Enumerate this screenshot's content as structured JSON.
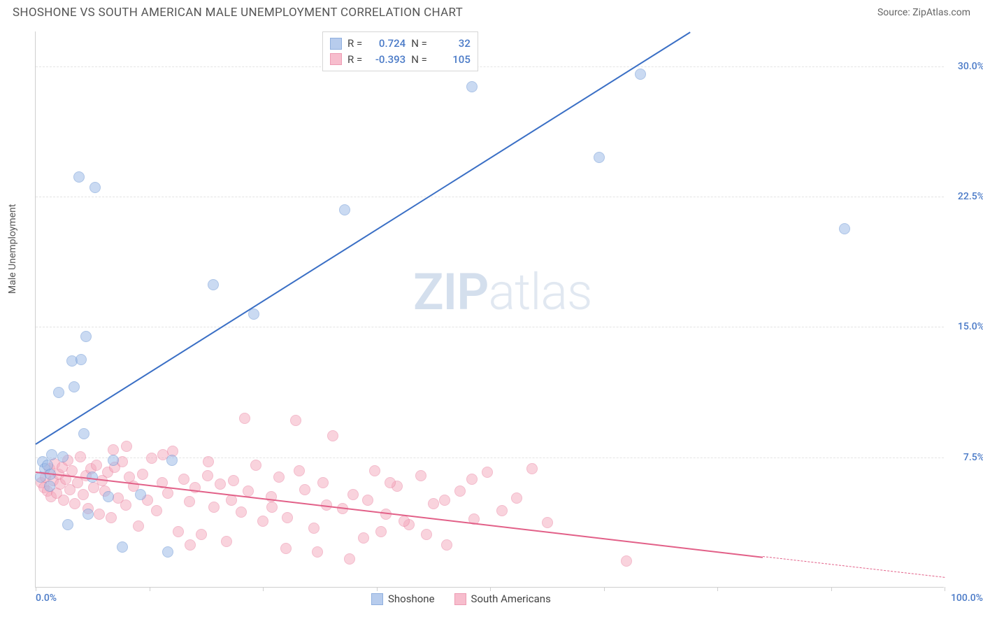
{
  "header": {
    "title": "SHOSHONE VS SOUTH AMERICAN MALE UNEMPLOYMENT CORRELATION CHART",
    "source_prefix": "Source: ",
    "source_name": "ZipAtlas.com"
  },
  "watermark": {
    "bold": "ZIP",
    "light": "atlas"
  },
  "chart": {
    "type": "scatter",
    "ylabel": "Male Unemployment",
    "background_color": "#ffffff",
    "grid_color": "#e4e4e4",
    "axis_color": "#cfcfcf",
    "marker_radius": 8,
    "marker_stroke_width": 1,
    "xlim": [
      0,
      100
    ],
    "ylim": [
      0,
      32
    ],
    "xticks": [
      0,
      12.5,
      25,
      37.5,
      50,
      62.5,
      75,
      87.5,
      100
    ],
    "yticks": [
      7.5,
      15.0,
      22.5,
      30.0
    ],
    "ytick_labels": [
      "7.5%",
      "15.0%",
      "22.5%",
      "30.0%"
    ],
    "xaxis_labels": [
      {
        "pos": 0,
        "text": "0.0%",
        "align": "left"
      },
      {
        "pos": 100,
        "text": "100.0%",
        "align": "right"
      }
    ],
    "tick_label_color": "#4a7ac7",
    "series": {
      "shoshone": {
        "label": "Shoshone",
        "fill": "#9fbce8",
        "fill_alpha": 0.55,
        "stroke": "#6a95d4",
        "line_color": "#3a6fc5",
        "r_value": "0.724",
        "n_value": "32",
        "trend": {
          "x1": 0,
          "y1": 8.3,
          "x2": 72,
          "y2": 32
        },
        "points": [
          [
            0.5,
            6.3
          ],
          [
            0.8,
            7.2
          ],
          [
            1.0,
            6.8
          ],
          [
            1.3,
            7.0
          ],
          [
            1.5,
            5.8
          ],
          [
            1.6,
            6.5
          ],
          [
            1.8,
            7.6
          ],
          [
            2.5,
            11.2
          ],
          [
            3.0,
            7.5
          ],
          [
            3.5,
            3.6
          ],
          [
            4.0,
            13.0
          ],
          [
            4.2,
            11.5
          ],
          [
            4.8,
            23.6
          ],
          [
            5.0,
            13.1
          ],
          [
            5.3,
            8.8
          ],
          [
            5.5,
            14.4
          ],
          [
            5.8,
            4.2
          ],
          [
            6.2,
            6.3
          ],
          [
            6.5,
            23.0
          ],
          [
            8.0,
            5.2
          ],
          [
            8.5,
            7.3
          ],
          [
            9.5,
            2.3
          ],
          [
            11.5,
            5.3
          ],
          [
            14.5,
            2.0
          ],
          [
            15.0,
            7.3
          ],
          [
            19.5,
            17.4
          ],
          [
            24.0,
            15.7
          ],
          [
            34.0,
            21.7
          ],
          [
            48.0,
            28.8
          ],
          [
            62.0,
            24.7
          ],
          [
            66.5,
            29.5
          ],
          [
            89.0,
            20.6
          ]
        ]
      },
      "south_american": {
        "label": "South Americans",
        "fill": "#f5a8bd",
        "fill_alpha": 0.5,
        "stroke": "#e87a9a",
        "line_color": "#e26088",
        "r_value": "-0.393",
        "n_value": "105",
        "trend_solid": {
          "x1": 0,
          "y1": 6.7,
          "x2": 80,
          "y2": 1.8
        },
        "trend_dashed": {
          "x1": 80,
          "y1": 1.8,
          "x2": 100,
          "y2": 0.6
        },
        "points": [
          [
            0.6,
            6.0
          ],
          [
            0.9,
            5.7
          ],
          [
            1.1,
            6.3
          ],
          [
            1.3,
            5.5
          ],
          [
            1.5,
            6.8
          ],
          [
            1.7,
            5.2
          ],
          [
            1.9,
            6.1
          ],
          [
            2.1,
            7.1
          ],
          [
            2.3,
            5.4
          ],
          [
            2.5,
            6.5
          ],
          [
            2.7,
            5.9
          ],
          [
            2.9,
            6.9
          ],
          [
            3.1,
            5.0
          ],
          [
            3.3,
            6.2
          ],
          [
            3.5,
            7.3
          ],
          [
            3.8,
            5.6
          ],
          [
            4.0,
            6.7
          ],
          [
            4.3,
            4.8
          ],
          [
            4.6,
            6.0
          ],
          [
            4.9,
            7.5
          ],
          [
            5.2,
            5.3
          ],
          [
            5.5,
            6.4
          ],
          [
            5.8,
            4.5
          ],
          [
            6.1,
            6.8
          ],
          [
            6.4,
            5.7
          ],
          [
            6.7,
            7.0
          ],
          [
            7.0,
            4.2
          ],
          [
            7.3,
            6.1
          ],
          [
            7.6,
            5.5
          ],
          [
            7.9,
            6.6
          ],
          [
            8.3,
            4.0
          ],
          [
            8.7,
            6.9
          ],
          [
            9.1,
            5.1
          ],
          [
            9.5,
            7.2
          ],
          [
            9.9,
            4.7
          ],
          [
            10.3,
            6.3
          ],
          [
            10.8,
            5.8
          ],
          [
            11.3,
            3.5
          ],
          [
            11.8,
            6.5
          ],
          [
            12.3,
            5.0
          ],
          [
            12.8,
            7.4
          ],
          [
            13.3,
            4.4
          ],
          [
            13.9,
            6.0
          ],
          [
            14.5,
            5.4
          ],
          [
            15.1,
            7.8
          ],
          [
            15.7,
            3.2
          ],
          [
            16.3,
            6.2
          ],
          [
            16.9,
            4.9
          ],
          [
            17.5,
            5.7
          ],
          [
            18.2,
            3.0
          ],
          [
            18.9,
            6.4
          ],
          [
            19.6,
            4.6
          ],
          [
            20.3,
            5.9
          ],
          [
            21.0,
            2.6
          ],
          [
            21.8,
            6.1
          ],
          [
            22.6,
            4.3
          ],
          [
            23.4,
            5.5
          ],
          [
            24.2,
            7.0
          ],
          [
            25.0,
            3.8
          ],
          [
            25.9,
            5.2
          ],
          [
            26.8,
            6.3
          ],
          [
            27.7,
            4.0
          ],
          [
            28.6,
            9.6
          ],
          [
            29.6,
            5.6
          ],
          [
            30.6,
            3.4
          ],
          [
            31.6,
            6.0
          ],
          [
            32.7,
            8.7
          ],
          [
            33.8,
            4.5
          ],
          [
            34.9,
            5.3
          ],
          [
            36.1,
            2.8
          ],
          [
            37.3,
            6.7
          ],
          [
            38.5,
            4.2
          ],
          [
            39.8,
            5.8
          ],
          [
            41.1,
            3.6
          ],
          [
            42.4,
            6.4
          ],
          [
            43.8,
            4.8
          ],
          [
            45.2,
            2.4
          ],
          [
            46.7,
            5.5
          ],
          [
            48.2,
            3.9
          ],
          [
            49.7,
            6.6
          ],
          [
            51.3,
            4.4
          ],
          [
            52.9,
            5.1
          ],
          [
            54.6,
            6.8
          ],
          [
            56.3,
            3.7
          ],
          [
            8.5,
            7.9
          ],
          [
            10.0,
            8.1
          ],
          [
            14.0,
            7.6
          ],
          [
            19.0,
            7.2
          ],
          [
            23.0,
            9.7
          ],
          [
            31.0,
            2.0
          ],
          [
            34.5,
            1.6
          ],
          [
            27.5,
            2.2
          ],
          [
            32.0,
            4.7
          ],
          [
            38.0,
            3.2
          ],
          [
            43.0,
            3.0
          ],
          [
            48.0,
            6.2
          ],
          [
            39.0,
            6.0
          ],
          [
            26.0,
            4.6
          ],
          [
            29.0,
            6.7
          ],
          [
            21.5,
            5.0
          ],
          [
            36.5,
            5.0
          ],
          [
            40.5,
            3.8
          ],
          [
            45.0,
            5.0
          ],
          [
            65.0,
            1.5
          ],
          [
            17.0,
            2.4
          ]
        ]
      }
    },
    "legend_top": {
      "r_label": "R =",
      "n_label": "N ="
    }
  }
}
